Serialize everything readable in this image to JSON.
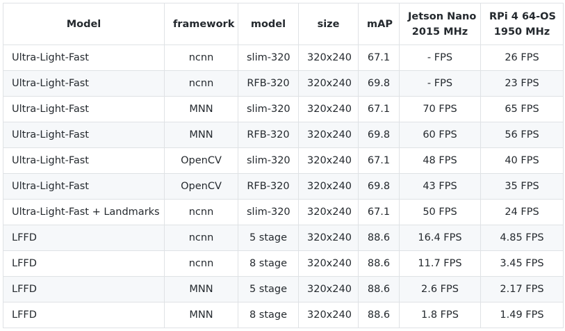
{
  "table": {
    "headers": [
      {
        "lines": [
          "Model"
        ]
      },
      {
        "lines": [
          "framework"
        ]
      },
      {
        "lines": [
          "model"
        ]
      },
      {
        "lines": [
          "size"
        ]
      },
      {
        "lines": [
          "mAP"
        ]
      },
      {
        "lines": [
          "Jetson Nano",
          "2015 MHz"
        ]
      },
      {
        "lines": [
          "RPi 4 64-OS",
          "1950 MHz"
        ]
      }
    ],
    "rows": [
      [
        "Ultra-Light-Fast",
        "ncnn",
        "slim-320",
        "320x240",
        "67.1",
        "- FPS",
        "26 FPS"
      ],
      [
        "Ultra-Light-Fast",
        "ncnn",
        "RFB-320",
        "320x240",
        "69.8",
        "- FPS",
        "23 FPS"
      ],
      [
        "Ultra-Light-Fast",
        "MNN",
        "slim-320",
        "320x240",
        "67.1",
        "70 FPS",
        "65 FPS"
      ],
      [
        "Ultra-Light-Fast",
        "MNN",
        "RFB-320",
        "320x240",
        "69.8",
        "60 FPS",
        "56 FPS"
      ],
      [
        "Ultra-Light-Fast",
        "OpenCV",
        "slim-320",
        "320x240",
        "67.1",
        "48 FPS",
        "40 FPS"
      ],
      [
        "Ultra-Light-Fast",
        "OpenCV",
        "RFB-320",
        "320x240",
        "69.8",
        "43 FPS",
        "35 FPS"
      ],
      [
        "Ultra-Light-Fast + Landmarks",
        "ncnn",
        "slim-320",
        "320x240",
        "67.1",
        "50 FPS",
        "24 FPS"
      ],
      [
        "LFFD",
        "ncnn",
        "5 stage",
        "320x240",
        "88.6",
        "16.4 FPS",
        "4.85 FPS"
      ],
      [
        "LFFD",
        "ncnn",
        "8 stage",
        "320x240",
        "88.6",
        "11.7 FPS",
        "3.45 FPS"
      ],
      [
        "LFFD",
        "MNN",
        "5 stage",
        "320x240",
        "88.6",
        "2.6 FPS",
        "2.17 FPS"
      ],
      [
        "LFFD",
        "MNN",
        "8 stage",
        "320x240",
        "88.6",
        "1.8 FPS",
        "1.49 FPS"
      ]
    ]
  }
}
